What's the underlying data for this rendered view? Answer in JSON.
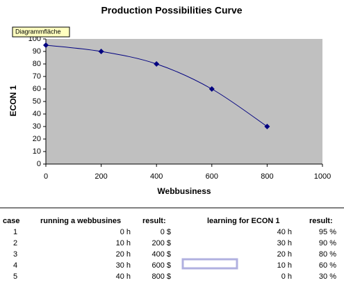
{
  "chart_data": {
    "type": "line",
    "title": "Production Possibilities Curve",
    "x_label": "Webbusiness",
    "y_label": "ECON 1",
    "x": [
      0,
      200,
      400,
      600,
      800
    ],
    "series": [
      {
        "name": "ECON 1",
        "color": "#000080",
        "values": [
          95,
          90,
          80,
          60,
          30
        ]
      }
    ],
    "xlim": [
      0,
      1000
    ],
    "xticks": [
      0,
      200,
      400,
      600,
      800,
      1000
    ],
    "ylim": [
      0,
      100
    ],
    "yticks": [
      0,
      10,
      20,
      30,
      40,
      50,
      60,
      70,
      80,
      90,
      100
    ],
    "plot_background": "#c0c0c0"
  },
  "tooltip": "Diagrammfläche",
  "table": {
    "header": [
      "case",
      "running a webbusines",
      "result:",
      "learning for ECON 1",
      "result:"
    ],
    "rows": [
      [
        "1",
        "0 h",
        "0 $",
        "40 h",
        "95 %"
      ],
      [
        "2",
        "10 h",
        "200 $",
        "30 h",
        "90 %"
      ],
      [
        "3",
        "20 h",
        "400 $",
        "20 h",
        "80 %"
      ],
      [
        "4",
        "30 h",
        "600 $",
        "10 h",
        "60 %"
      ],
      [
        "5",
        "40 h",
        "800 $",
        "0 h",
        "30 %"
      ]
    ]
  }
}
